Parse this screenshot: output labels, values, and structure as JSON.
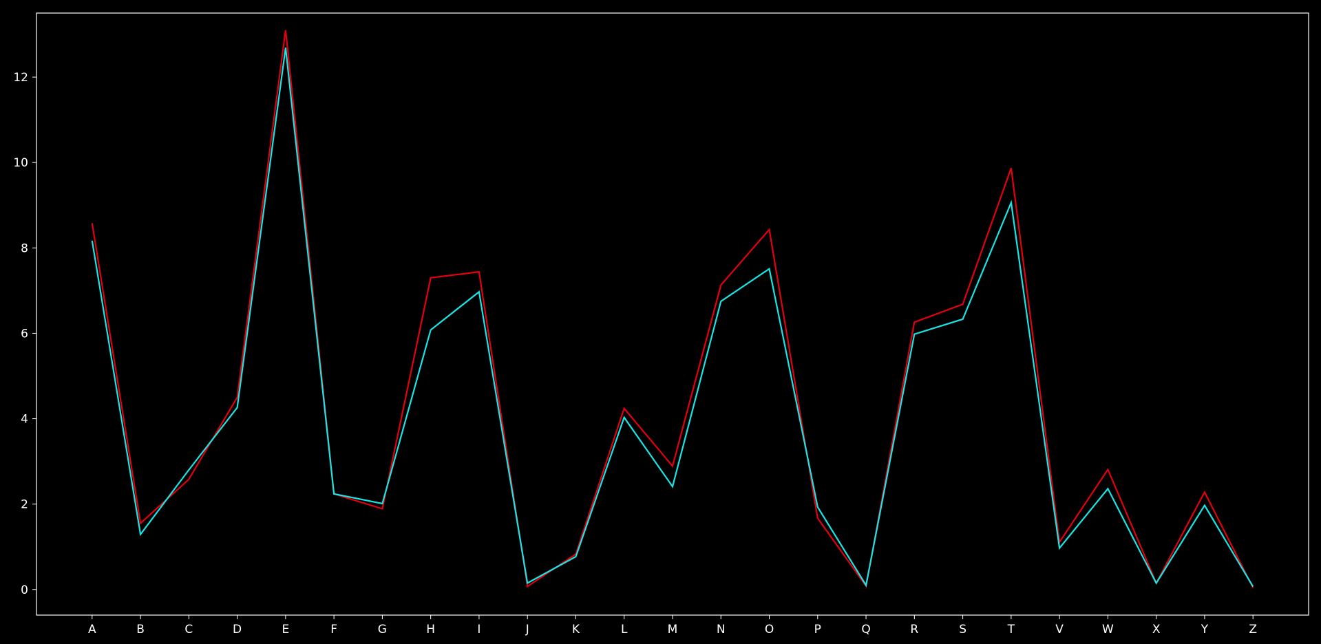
{
  "chart_data": {
    "type": "line",
    "title": "",
    "xlabel": "",
    "ylabel": "",
    "categories": [
      "A",
      "B",
      "C",
      "D",
      "E",
      "F",
      "G",
      "H",
      "I",
      "J",
      "K",
      "L",
      "M",
      "N",
      "O",
      "P",
      "Q",
      "R",
      "S",
      "T",
      "V",
      "W",
      "X",
      "Y",
      "Z"
    ],
    "ylim": [
      -0.6,
      13.5
    ],
    "yticks": [
      0,
      2,
      4,
      6,
      8,
      10,
      12
    ],
    "grid": false,
    "legend": "none",
    "series": [
      {
        "color": "#e3000f",
        "values": [
          8.58,
          1.55,
          2.58,
          4.5,
          13.1,
          2.24,
          1.89,
          7.3,
          7.44,
          0.07,
          0.83,
          4.24,
          2.89,
          7.13,
          8.43,
          1.67,
          0.08,
          6.26,
          6.68,
          9.87,
          1.11,
          2.81,
          0.15,
          2.28,
          0.04
        ]
      },
      {
        "color": "#18e6e6",
        "values": [
          8.17,
          1.29,
          2.8,
          4.26,
          12.69,
          2.24,
          2.01,
          6.08,
          6.97,
          0.15,
          0.77,
          4.03,
          2.41,
          6.75,
          7.51,
          1.93,
          0.1,
          5.98,
          6.33,
          9.06,
          0.97,
          2.36,
          0.15,
          1.97,
          0.07
        ]
      }
    ],
    "colors": {
      "background": "#000000",
      "axis": "#ffffff",
      "text": "#ffffff"
    }
  }
}
